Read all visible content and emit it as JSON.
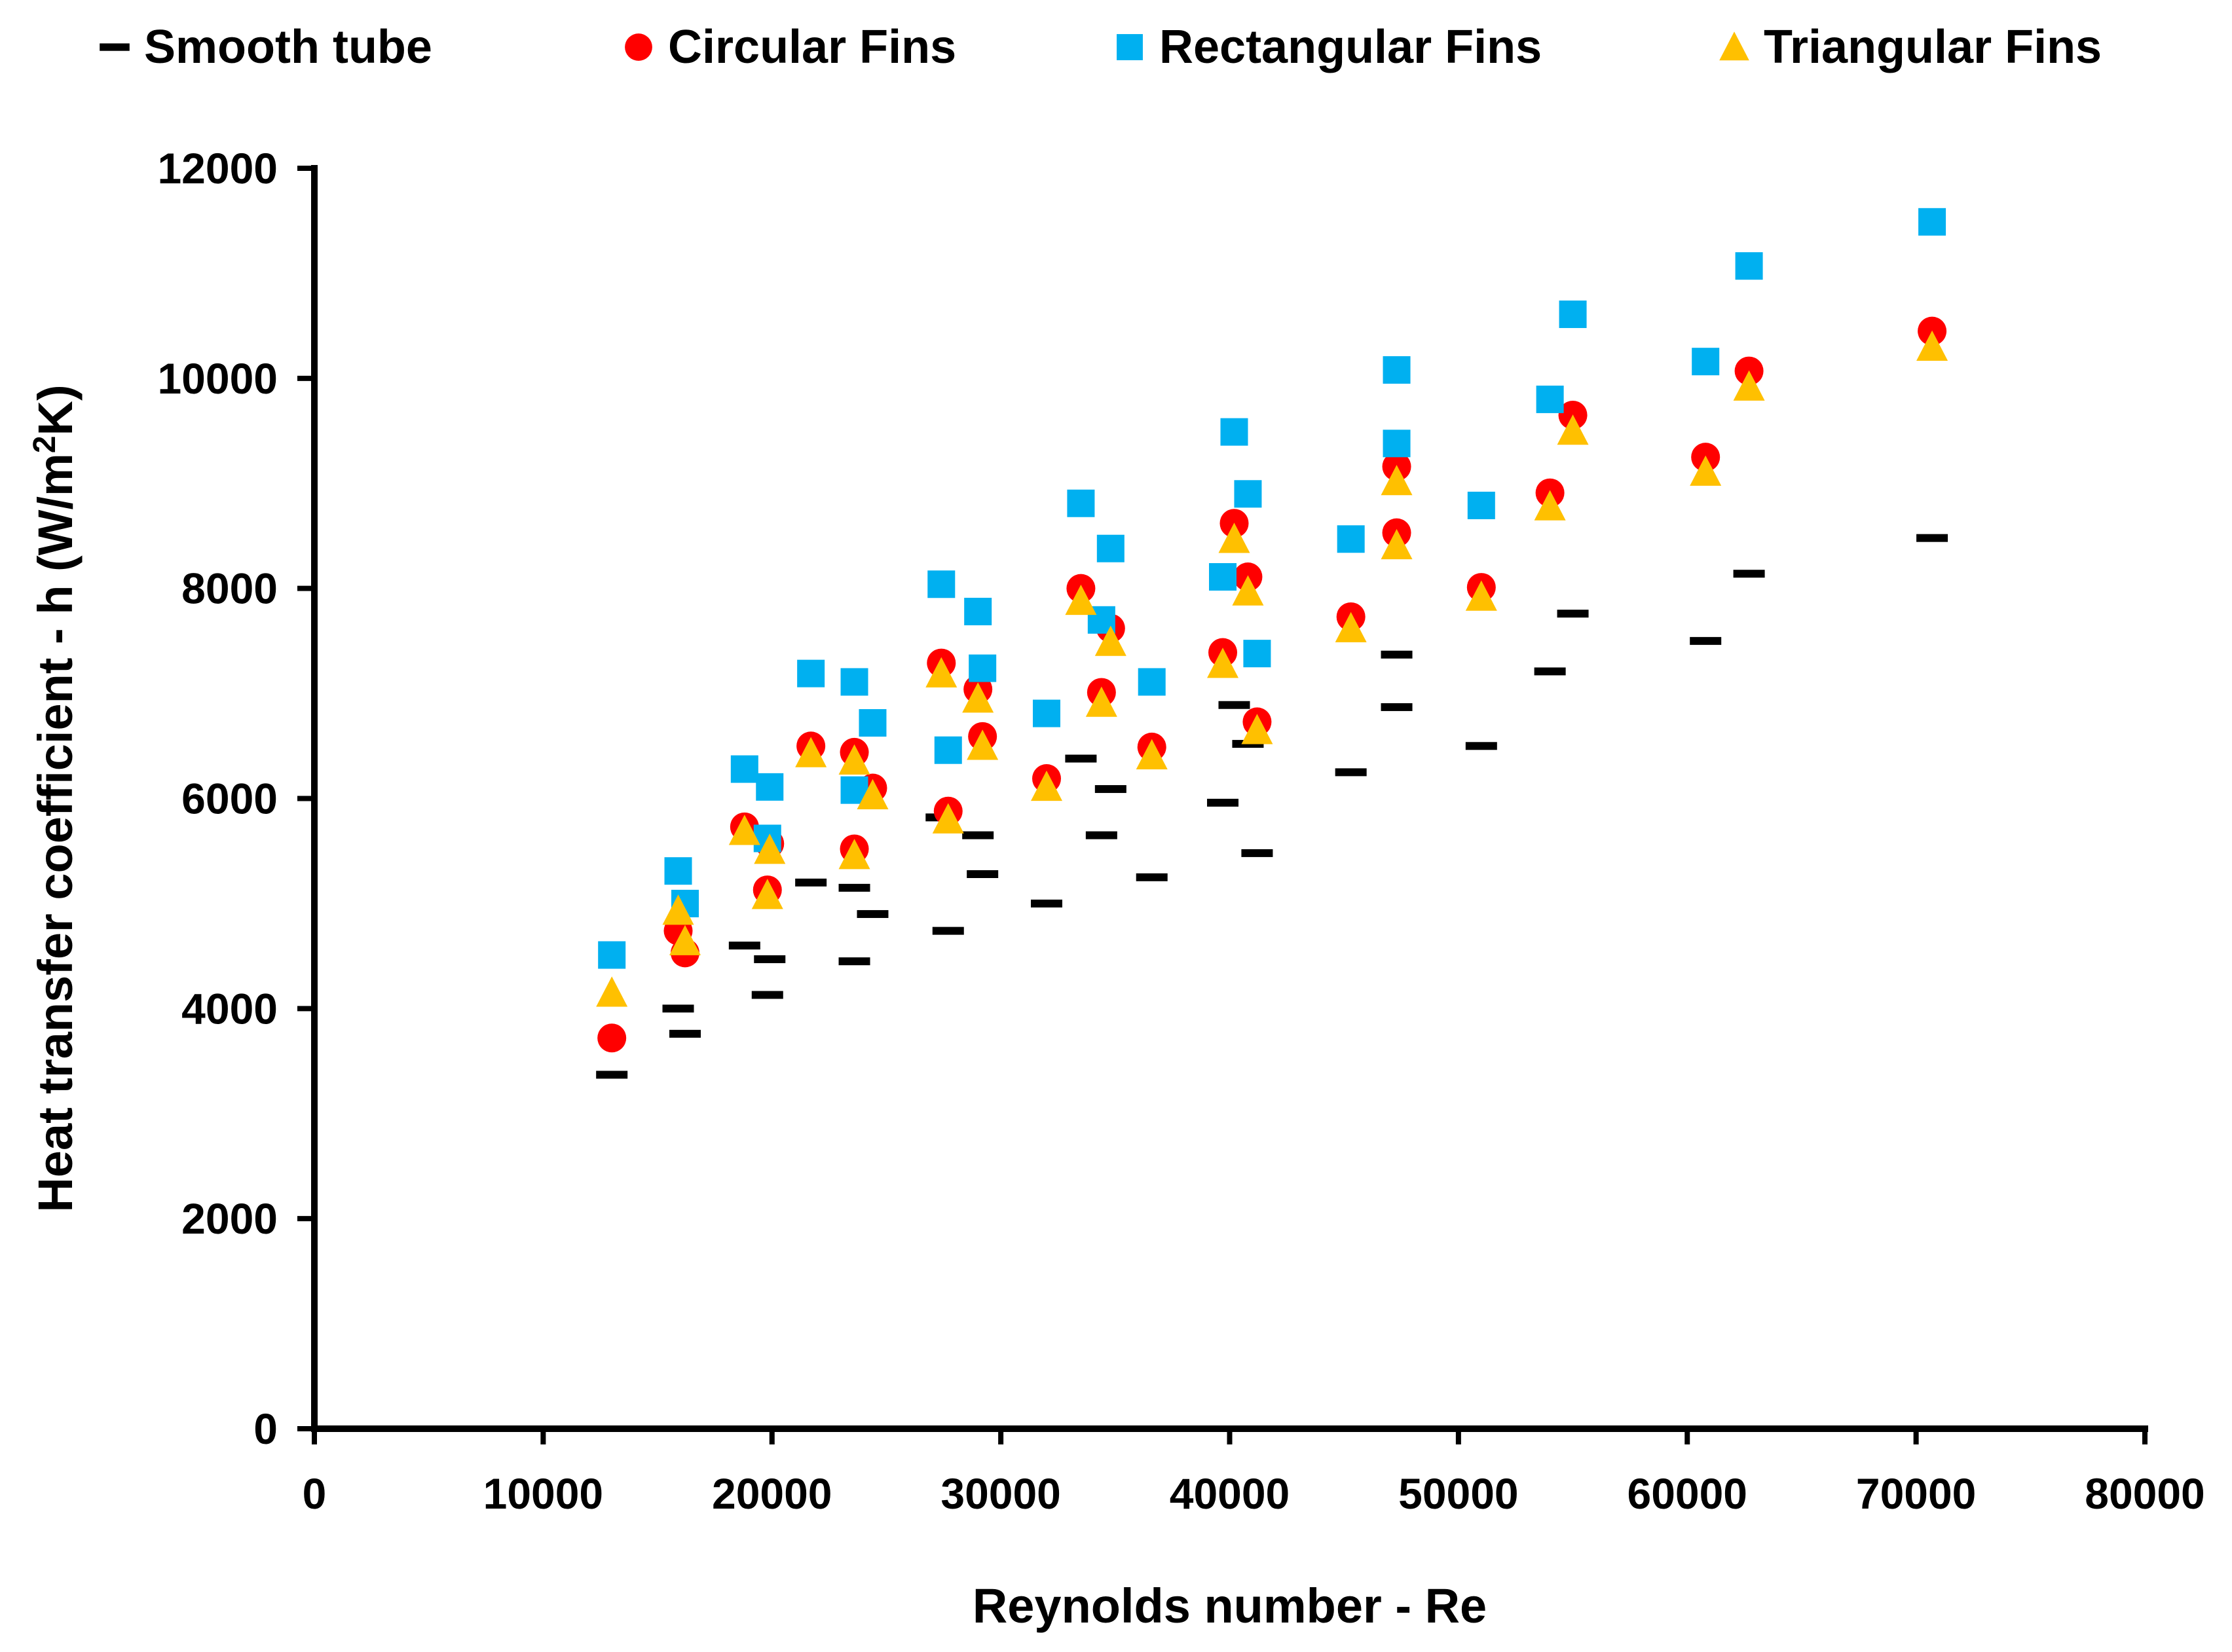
{
  "chart_data": {
    "type": "scatter",
    "title": "",
    "xlabel": "Reynolds number - Re",
    "ylabel": {
      "prefix": "Heat transfer coefficient - h (W/m",
      "superscript": "2",
      "suffix": "K)"
    },
    "xlim": [
      0,
      80000
    ],
    "ylim": [
      0,
      12000
    ],
    "xticks": [
      0,
      10000,
      20000,
      30000,
      40000,
      50000,
      60000,
      70000,
      80000
    ],
    "yticks": [
      0,
      2000,
      4000,
      6000,
      8000,
      10000,
      12000
    ],
    "grid": false,
    "legend_position": "top",
    "series": [
      {
        "name": "Smooth tube",
        "marker": "dash",
        "color": "#000000",
        "points": [
          [
            13000,
            3370
          ],
          [
            15900,
            4000
          ],
          [
            16200,
            3760
          ],
          [
            18800,
            4600
          ],
          [
            19800,
            4130
          ],
          [
            19900,
            4470
          ],
          [
            21700,
            5200
          ],
          [
            23600,
            4450
          ],
          [
            23600,
            5150
          ],
          [
            24400,
            4900
          ],
          [
            27400,
            5820
          ],
          [
            27700,
            4740
          ],
          [
            29000,
            5650
          ],
          [
            29200,
            5280
          ],
          [
            32000,
            5000
          ],
          [
            33500,
            6380
          ],
          [
            34400,
            5650
          ],
          [
            34800,
            6090
          ],
          [
            36600,
            5250
          ],
          [
            39700,
            5960
          ],
          [
            40200,
            6890
          ],
          [
            40800,
            6520
          ],
          [
            41200,
            5480
          ],
          [
            45300,
            6250
          ],
          [
            47300,
            7370
          ],
          [
            47300,
            6870
          ],
          [
            51000,
            6500
          ],
          [
            54000,
            7210
          ],
          [
            55000,
            7760
          ],
          [
            60800,
            7500
          ],
          [
            62700,
            8140
          ],
          [
            70700,
            8480
          ]
        ]
      },
      {
        "name": "Circular Fins",
        "marker": "circle",
        "color": "#ff0000",
        "points": [
          [
            13000,
            3720
          ],
          [
            15900,
            4740
          ],
          [
            16200,
            4530
          ],
          [
            18800,
            5730
          ],
          [
            19800,
            5130
          ],
          [
            19900,
            5570
          ],
          [
            21700,
            6500
          ],
          [
            23600,
            5520
          ],
          [
            23600,
            6440
          ],
          [
            24400,
            6100
          ],
          [
            27400,
            7290
          ],
          [
            27700,
            5880
          ],
          [
            29000,
            7040
          ],
          [
            29200,
            6590
          ],
          [
            32000,
            6190
          ],
          [
            33500,
            8000
          ],
          [
            34400,
            7010
          ],
          [
            34800,
            7620
          ],
          [
            36600,
            6490
          ],
          [
            39700,
            7390
          ],
          [
            40200,
            8620
          ],
          [
            40800,
            8110
          ],
          [
            41200,
            6730
          ],
          [
            45300,
            7730
          ],
          [
            47300,
            9160
          ],
          [
            47300,
            8530
          ],
          [
            51000,
            8010
          ],
          [
            54000,
            8910
          ],
          [
            55000,
            9650
          ],
          [
            60800,
            9250
          ],
          [
            62700,
            10070
          ],
          [
            70700,
            10450
          ]
        ]
      },
      {
        "name": "Rectangular Fins",
        "marker": "square",
        "color": "#00b0f0",
        "points": [
          [
            13000,
            4510
          ],
          [
            15900,
            5310
          ],
          [
            16200,
            5000
          ],
          [
            18800,
            6280
          ],
          [
            19800,
            5620
          ],
          [
            19900,
            6110
          ],
          [
            21700,
            7190
          ],
          [
            23600,
            6080
          ],
          [
            23600,
            7110
          ],
          [
            24400,
            6720
          ],
          [
            27400,
            8040
          ],
          [
            27700,
            6460
          ],
          [
            29000,
            7780
          ],
          [
            29200,
            7240
          ],
          [
            32000,
            6810
          ],
          [
            33500,
            8810
          ],
          [
            34400,
            7700
          ],
          [
            34800,
            8380
          ],
          [
            36600,
            7110
          ],
          [
            39700,
            8110
          ],
          [
            40200,
            9490
          ],
          [
            40800,
            8900
          ],
          [
            41200,
            7380
          ],
          [
            45300,
            8470
          ],
          [
            47300,
            10080
          ],
          [
            47300,
            9380
          ],
          [
            51000,
            8790
          ],
          [
            54000,
            9800
          ],
          [
            55000,
            10610
          ],
          [
            60800,
            10160
          ],
          [
            62700,
            11070
          ],
          [
            70700,
            11490
          ]
        ]
      },
      {
        "name": "Triangular Fins",
        "marker": "triangle",
        "color": "#ffc000",
        "points": [
          [
            13000,
            4150
          ],
          [
            15900,
            4930
          ],
          [
            16200,
            4640
          ],
          [
            18800,
            5690
          ],
          [
            19800,
            5080
          ],
          [
            19900,
            5510
          ],
          [
            21700,
            6430
          ],
          [
            23600,
            5460
          ],
          [
            23600,
            6360
          ],
          [
            24400,
            6030
          ],
          [
            27400,
            7190
          ],
          [
            27700,
            5800
          ],
          [
            29000,
            6950
          ],
          [
            29200,
            6500
          ],
          [
            32000,
            6110
          ],
          [
            33500,
            7880
          ],
          [
            34400,
            6910
          ],
          [
            34800,
            7490
          ],
          [
            36600,
            6410
          ],
          [
            39700,
            7280
          ],
          [
            40200,
            8470
          ],
          [
            40800,
            7970
          ],
          [
            41200,
            6650
          ],
          [
            45300,
            7620
          ],
          [
            47300,
            9020
          ],
          [
            47300,
            8410
          ],
          [
            51000,
            7920
          ],
          [
            54000,
            8780
          ],
          [
            55000,
            9500
          ],
          [
            60800,
            9110
          ],
          [
            62700,
            9920
          ],
          [
            70700,
            10300
          ]
        ]
      }
    ]
  }
}
